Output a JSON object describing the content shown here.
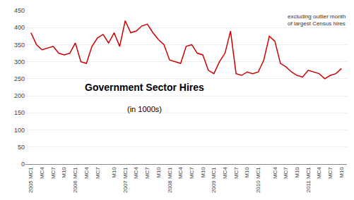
{
  "chart_data": {
    "type": "line",
    "title": "Government Sector Hires",
    "subtitle": "(in 1000s)",
    "annotation": "excluding outlier month\nof largest Census hires",
    "color": "#cc0000",
    "categories": [
      "2005 MC1",
      null,
      "MC4",
      null,
      "MC7",
      null,
      "M10",
      null,
      "2006 MC1",
      null,
      "MC4",
      null,
      "MC7",
      null,
      null,
      "M10",
      null,
      "2007 MC1",
      null,
      "MC4",
      null,
      "MC7",
      null,
      "M10",
      null,
      "2008 MC1",
      null,
      "MC4",
      null,
      "MC7",
      null,
      "M10",
      null,
      "2009 MC1",
      null,
      "MC4",
      null,
      "MC7",
      null,
      "M10",
      null,
      "2010 MC1",
      null,
      null,
      "MC4",
      null,
      "MC7",
      null,
      "M10",
      null,
      "2011 MC1",
      null,
      "MC4",
      null,
      "MC7",
      null,
      "M10"
    ],
    "values": [
      385,
      350,
      335,
      340,
      345,
      325,
      320,
      325,
      355,
      300,
      295,
      345,
      370,
      380,
      355,
      385,
      345,
      420,
      385,
      390,
      405,
      410,
      385,
      365,
      350,
      305,
      300,
      295,
      345,
      350,
      325,
      320,
      275,
      265,
      300,
      325,
      390,
      265,
      260,
      270,
      265,
      270,
      305,
      375,
      360,
      295,
      285,
      270,
      260,
      255,
      275,
      270,
      265,
      250,
      260,
      265,
      280
    ],
    "ylim": [
      0,
      450
    ],
    "yticks": [
      0,
      50,
      100,
      150,
      200,
      250,
      300,
      350,
      400,
      450
    ],
    "grid": true
  }
}
